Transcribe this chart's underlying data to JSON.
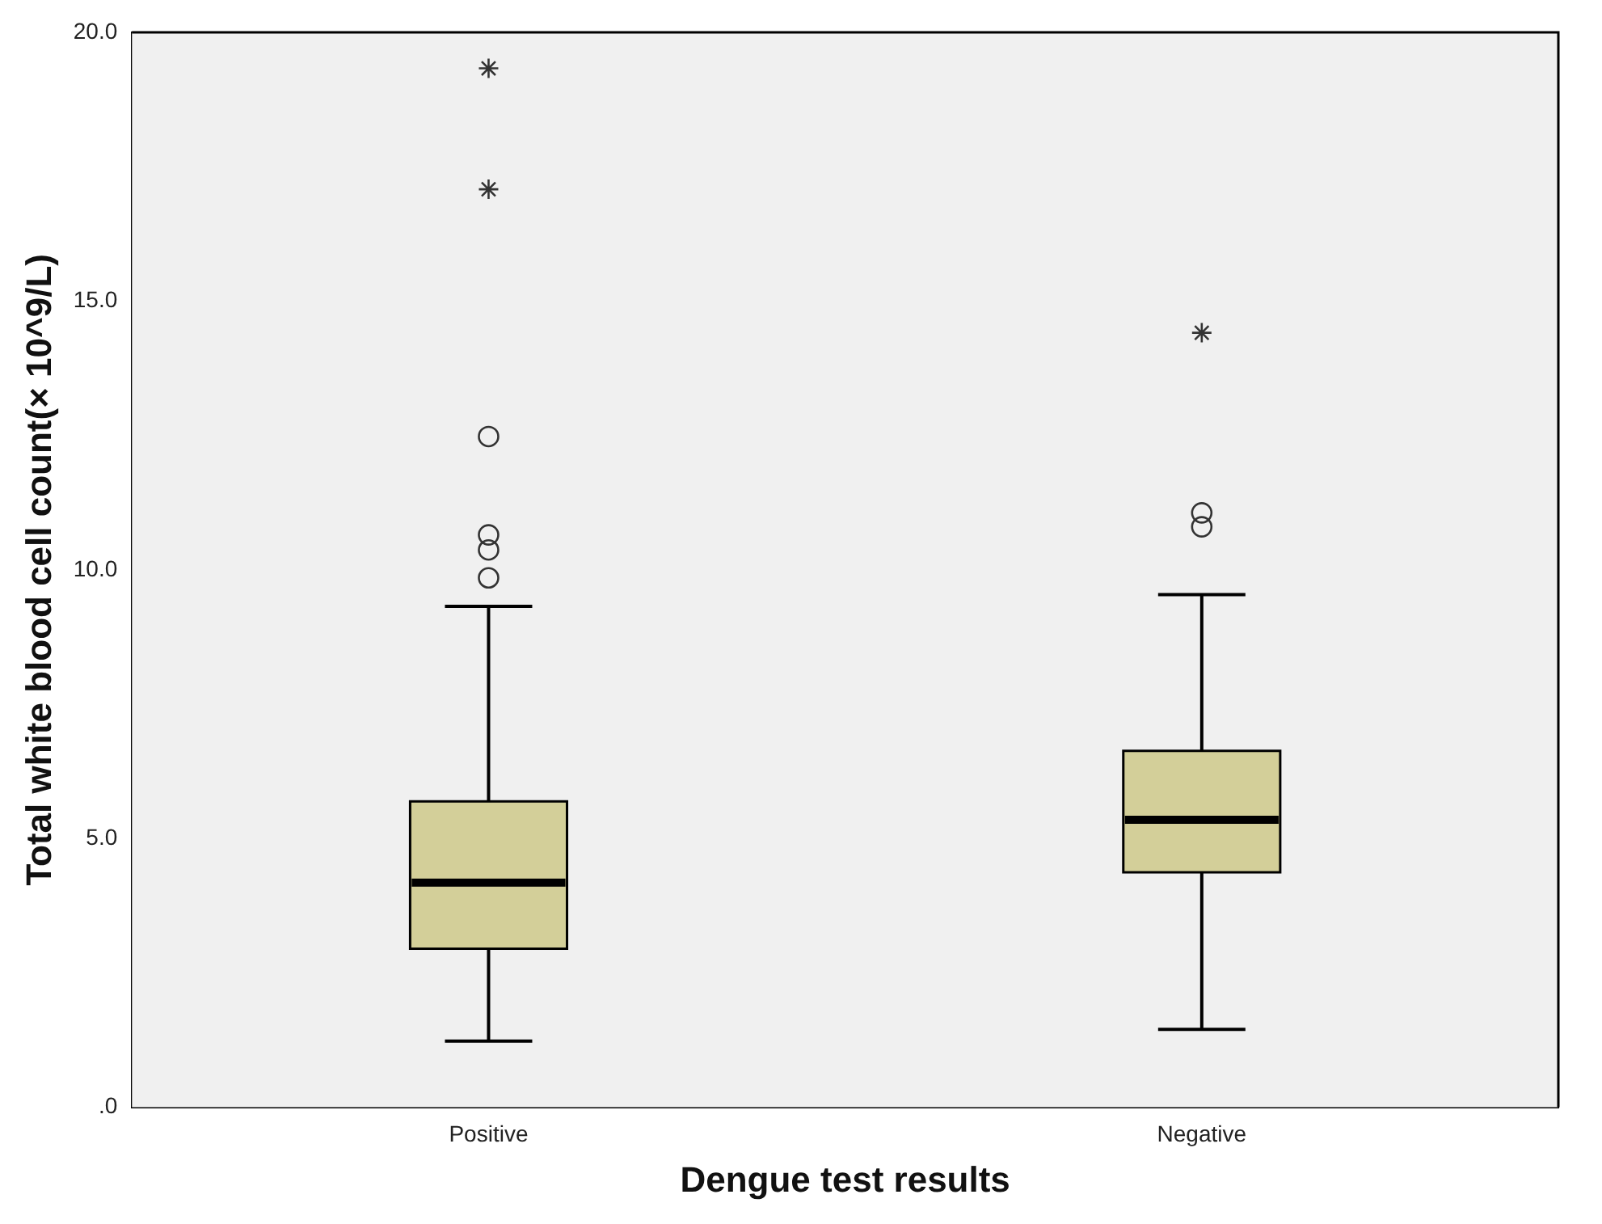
{
  "chart_data": {
    "type": "box",
    "xlabel": "Dengue test results",
    "ylabel": "Total white blood cell count(× 10^9/L)",
    "categories": [
      "Positive",
      "Negative"
    ],
    "color": "#d3cf99",
    "boxes": [
      {
        "low": 1.23,
        "q1": 2.95,
        "median": 4.18,
        "q3": 5.69,
        "high": 9.32,
        "outliers": [
          9.85,
          10.37,
          10.65,
          12.48,
          17.08,
          19.33
        ]
      },
      {
        "low": 1.45,
        "q1": 4.37,
        "median": 5.35,
        "q3": 6.63,
        "high": 9.54,
        "outliers": [
          10.8,
          11.06,
          14.41
        ]
      }
    ],
    "ylim": [
      0,
      20
    ],
    "yticks": [
      {
        "value": 0,
        "label": ".0"
      },
      {
        "value": 5,
        "label": "5.0"
      },
      {
        "value": 10,
        "label": "10.0"
      },
      {
        "value": 15,
        "label": "15.0"
      },
      {
        "value": 20,
        "label": "20.0"
      }
    ],
    "grid": false
  }
}
